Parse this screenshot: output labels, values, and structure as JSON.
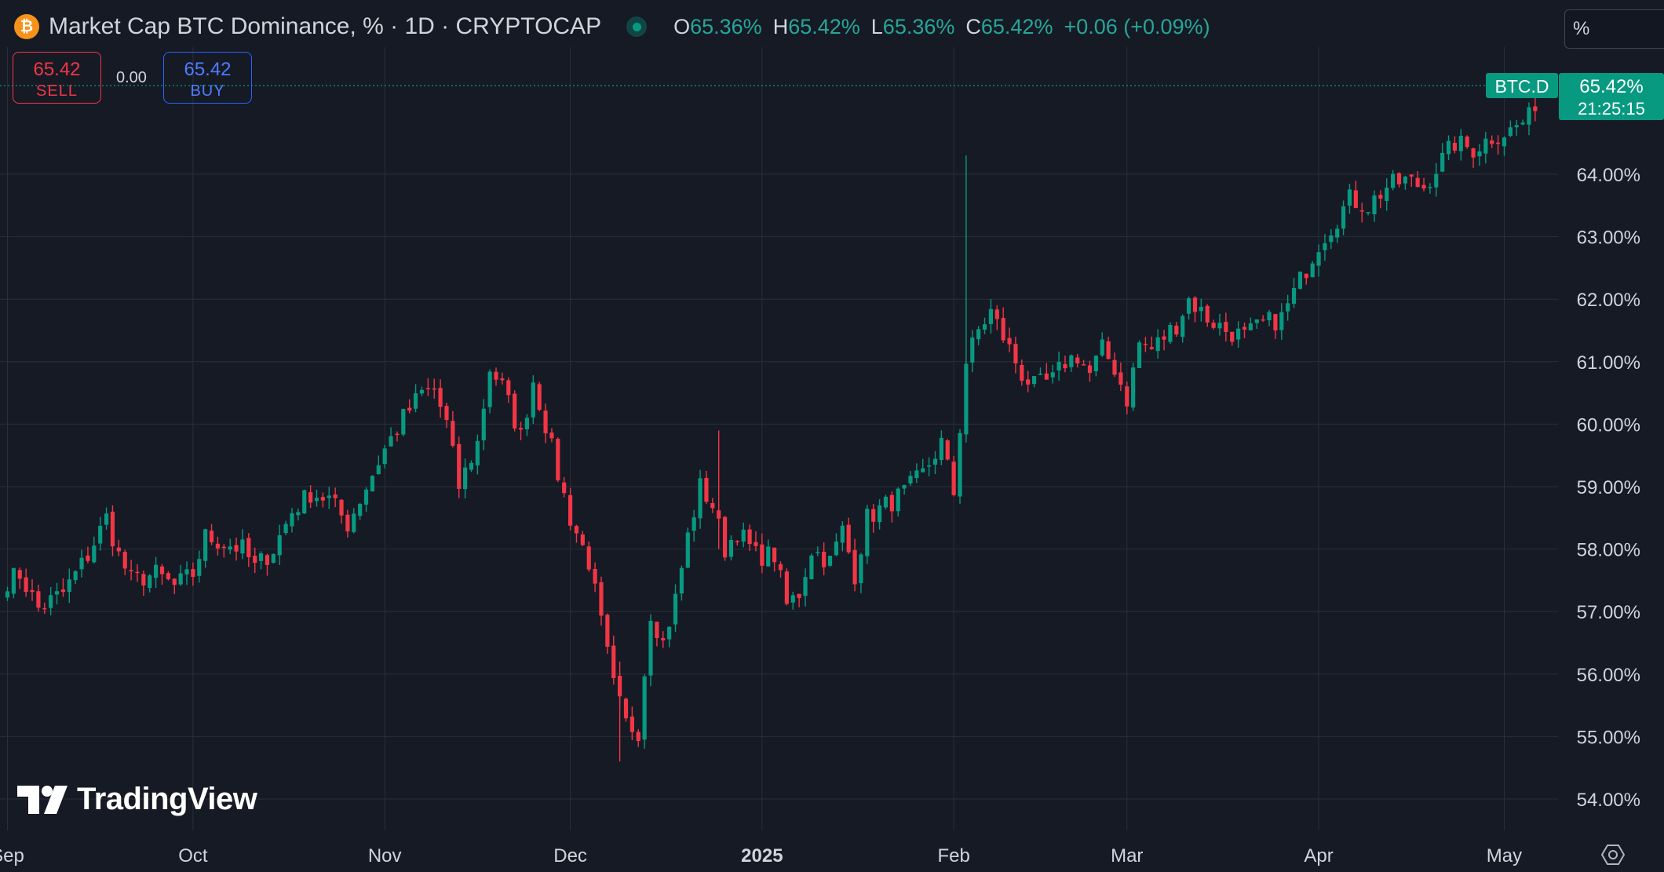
{
  "header": {
    "title": "Market Cap BTC Dominance, % · 1D · CRYPTOCAP",
    "icon": "bitcoin-icon",
    "ohlc": [
      {
        "key": "O",
        "value": "65.36%"
      },
      {
        "key": "H",
        "value": "65.42%"
      },
      {
        "key": "L",
        "value": "65.36%"
      },
      {
        "key": "C",
        "value": "65.42%"
      }
    ],
    "change": "+0.06 (+0.09%)"
  },
  "toolbar": {
    "percent_label": "%"
  },
  "trade": {
    "sell_price": "65.42",
    "sell_label": "SELL",
    "spread": "0.00",
    "buy_price": "65.42",
    "buy_label": "BUY"
  },
  "price_scale": {
    "symbol_tag": "BTC.D",
    "last_price": "65.42%",
    "countdown": "21:25:15"
  },
  "branding": {
    "logo_text": "TradingView"
  },
  "colors": {
    "up": "#089981",
    "down": "#f23645",
    "background": "#161a25",
    "grid": "#2a2e39",
    "text": "#d1d4dc"
  },
  "chart_data": {
    "type": "candlestick",
    "title": "Market Cap BTC Dominance, % · 1D · CRYPTOCAP",
    "y_ticks": [
      "54.00%",
      "55.00%",
      "56.00%",
      "57.00%",
      "58.00%",
      "59.00%",
      "60.00%",
      "61.00%",
      "62.00%",
      "63.00%",
      "64.00%"
    ],
    "x_ticks": [
      "Sep",
      "Oct",
      "Nov",
      "Dec",
      "2025",
      "Feb",
      "Mar",
      "Apr",
      "May"
    ],
    "ylim": [
      53.6,
      66.6
    ],
    "grid": true,
    "last_value": 65.42,
    "anchors": [
      [
        "2024-09-01",
        57.5
      ],
      [
        "2024-09-03",
        57.6
      ],
      [
        "2024-09-06",
        57.05
      ],
      [
        "2024-09-10",
        57.3
      ],
      [
        "2024-09-14",
        57.9
      ],
      [
        "2024-09-17",
        58.5
      ],
      [
        "2024-09-19",
        57.9
      ],
      [
        "2024-09-21",
        57.5
      ],
      [
        "2024-09-25",
        57.6
      ],
      [
        "2024-09-28",
        57.4
      ],
      [
        "2024-10-01",
        57.6
      ],
      [
        "2024-10-03",
        58.2
      ],
      [
        "2024-10-06",
        58.1
      ],
      [
        "2024-10-09",
        58.0
      ],
      [
        "2024-10-11",
        57.7
      ],
      [
        "2024-10-14",
        58.0
      ],
      [
        "2024-10-17",
        58.6
      ],
      [
        "2024-10-20",
        58.9
      ],
      [
        "2024-10-23",
        58.8
      ],
      [
        "2024-10-26",
        58.4
      ],
      [
        "2024-10-29",
        59.0
      ],
      [
        "2024-11-01",
        59.6
      ],
      [
        "2024-11-04",
        60.1
      ],
      [
        "2024-11-07",
        60.5
      ],
      [
        "2024-11-09",
        60.55
      ],
      [
        "2024-11-11",
        60.0
      ],
      [
        "2024-11-13",
        59.0
      ],
      [
        "2024-11-16",
        59.7
      ],
      [
        "2024-11-18",
        60.9
      ],
      [
        "2024-11-20",
        60.6
      ],
      [
        "2024-11-23",
        59.8
      ],
      [
        "2024-11-25",
        60.7
      ],
      [
        "2024-11-27",
        60.0
      ],
      [
        "2024-11-29",
        59.2
      ],
      [
        "2024-12-01",
        58.5
      ],
      [
        "2024-12-04",
        57.8
      ],
      [
        "2024-12-06",
        56.8
      ],
      [
        "2024-12-08",
        55.8
      ],
      [
        "2024-12-10",
        55.2
      ],
      [
        "2024-12-12",
        55.1
      ],
      [
        "2024-12-14",
        57.0
      ],
      [
        "2024-12-16",
        56.5
      ],
      [
        "2024-12-18",
        57.2
      ],
      [
        "2024-12-20",
        58.2
      ],
      [
        "2024-12-22",
        59.0
      ],
      [
        "2024-12-24",
        58.7
      ],
      [
        "2024-12-26",
        58.0
      ],
      [
        "2024-12-28",
        58.3
      ],
      [
        "2024-12-31",
        57.9
      ],
      [
        "2025-01-03",
        57.9
      ],
      [
        "2025-01-05",
        57.1
      ],
      [
        "2025-01-07",
        57.3
      ],
      [
        "2025-01-09",
        58.0
      ],
      [
        "2025-01-12",
        57.8
      ],
      [
        "2025-01-14",
        58.3
      ],
      [
        "2025-01-16",
        57.6
      ],
      [
        "2025-01-18",
        58.5
      ],
      [
        "2025-01-21",
        58.7
      ],
      [
        "2025-01-24",
        58.9
      ],
      [
        "2025-01-27",
        59.2
      ],
      [
        "2025-01-30",
        59.7
      ],
      [
        "2025-02-01",
        58.9
      ],
      [
        "2025-02-03",
        61.0
      ],
      [
        "2025-02-05",
        61.5
      ],
      [
        "2025-02-07",
        61.8
      ],
      [
        "2025-02-09",
        61.4
      ],
      [
        "2025-02-12",
        60.8
      ],
      [
        "2025-02-14",
        60.6
      ],
      [
        "2025-02-17",
        60.7
      ],
      [
        "2025-02-19",
        61.0
      ],
      [
        "2025-02-21",
        61.1
      ],
      [
        "2025-02-23",
        60.8
      ],
      [
        "2025-02-25",
        61.2
      ],
      [
        "2025-02-27",
        60.9
      ],
      [
        "2025-03-01",
        60.4
      ],
      [
        "2025-03-03",
        61.3
      ],
      [
        "2025-03-05",
        61.2
      ],
      [
        "2025-03-07",
        61.4
      ],
      [
        "2025-03-09",
        61.6
      ],
      [
        "2025-03-11",
        62.0
      ],
      [
        "2025-03-14",
        61.7
      ],
      [
        "2025-03-17",
        61.5
      ],
      [
        "2025-03-20",
        61.4
      ],
      [
        "2025-03-23",
        61.6
      ],
      [
        "2025-03-26",
        61.7
      ],
      [
        "2025-03-29",
        62.3
      ],
      [
        "2025-04-01",
        62.9
      ],
      [
        "2025-04-04",
        63.3
      ],
      [
        "2025-04-06",
        63.6
      ],
      [
        "2025-04-09",
        63.5
      ],
      [
        "2025-04-12",
        63.8
      ],
      [
        "2025-04-15",
        63.9
      ],
      [
        "2025-04-18",
        63.8
      ],
      [
        "2025-04-20",
        64.1
      ],
      [
        "2025-04-23",
        64.5
      ],
      [
        "2025-04-26",
        64.4
      ],
      [
        "2025-04-29",
        64.6
      ],
      [
        "2025-05-02",
        64.7
      ],
      [
        "2025-05-05",
        64.9
      ],
      [
        "2025-05-07",
        65.42
      ]
    ]
  }
}
